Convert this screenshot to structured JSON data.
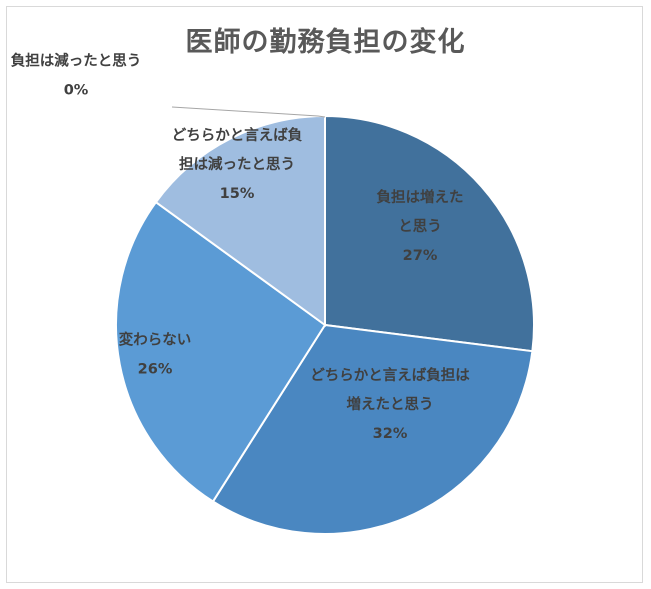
{
  "chart_data": {
    "type": "pie",
    "title": "医師の勤務負担の変化",
    "slices": [
      {
        "label_lines": [
          "負担は増えた",
          "と思う"
        ],
        "pct_label": "27%",
        "value": 27,
        "color": "#41719c"
      },
      {
        "label_lines": [
          "どちらかと言えば負担は",
          "増えたと思う"
        ],
        "pct_label": "32%",
        "value": 32,
        "color": "#4a87c1"
      },
      {
        "label_lines": [
          "変わらない"
        ],
        "pct_label": "26%",
        "value": 26,
        "color": "#5b9bd5"
      },
      {
        "label_lines": [
          "どちらかと言えば負",
          "担は減ったと思う"
        ],
        "pct_label": "15%",
        "value": 15,
        "color": "#9fbde0"
      },
      {
        "label_lines": [
          "負担は減ったと思う"
        ],
        "pct_label": "0%",
        "value": 0,
        "color": "#c5d7ee"
      }
    ],
    "legend": "none",
    "start_angle": "12 o'clock, clockwise"
  }
}
